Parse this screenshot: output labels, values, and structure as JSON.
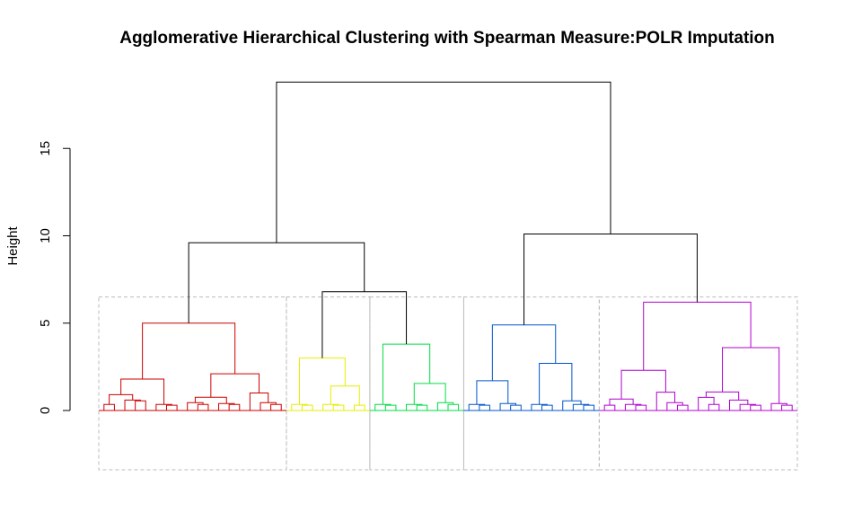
{
  "chart_data": {
    "type": "dendrogram",
    "title": "Agglomerative Hierarchical Clustering with Spearman Measure:POLR Imputation",
    "ylabel": "Height",
    "xlabel": "",
    "ylim": [
      0,
      18.8
    ],
    "yticks": [
      "0",
      "5",
      "10",
      "15"
    ],
    "cut_height": 6.5,
    "root_height": 18.8,
    "top_merges": [
      {
        "name": "left",
        "height": 9.6,
        "children": [
          "red",
          "yellow+green"
        ]
      },
      {
        "name": "yellow+green",
        "height": 6.8,
        "children": [
          "yellow",
          "green"
        ]
      },
      {
        "name": "right",
        "height": 10.1,
        "children": [
          "blue",
          "purple"
        ]
      }
    ],
    "clusters": [
      {
        "color": "#cc0000",
        "height": 5.0,
        "sub": [
          {
            "height": 1.8,
            "leaves": [
              [
                0.95,
                0.35
              ],
              [
                1.3,
                0.6,
                0.55
              ],
              [
                0.5,
                0.35,
                0.3
              ]
            ]
          },
          {
            "height": 2.1,
            "leaves": [
              [
                0.5,
                0.45,
                0.35
              ],
              [
                1.0,
                0.4,
                0.35
              ],
              [
                1.8,
                1.0,
                0.45,
                0.35
              ]
            ]
          }
        ]
      },
      {
        "color": "#e6ee00",
        "height": 3.0,
        "sub": [
          {
            "height": 1.0,
            "leaves": [
              [
                0.55,
                0.35,
                0.3
              ]
            ]
          },
          {
            "height": 1.4,
            "leaves": [
              [
                0.6,
                0.35,
                0.3
              ],
              [
                0.4,
                0.3
              ]
            ]
          }
        ]
      },
      {
        "color": "#00dd44",
        "height": 3.8,
        "sub": [
          {
            "height": 1.0,
            "leaves": [
              [
                0.55,
                0.35,
                0.3
              ]
            ]
          },
          {
            "height": 1.55,
            "leaves": [
              [
                0.5,
                0.35,
                0.3
              ],
              [
                1.25,
                0.45,
                0.35
              ]
            ]
          }
        ]
      },
      {
        "color": "#0055cc",
        "height": 4.9,
        "sub": [
          {
            "height": 1.7,
            "leaves": [
              [
                0.45,
                0.35,
                0.3
              ],
              [
                0.85,
                0.4,
                0.3
              ]
            ]
          },
          {
            "height": 2.7,
            "leaves": [
              [
                0.75,
                0.35,
                0.3
              ],
              [
                1.0,
                0.55,
                0.35,
                0.3
              ]
            ]
          }
        ]
      },
      {
        "color": "#b000d0",
        "height": 6.2,
        "sub": [
          {
            "height": 2.3,
            "leaves": [
              [
                0.35,
                0.3
              ],
              [
                0.9,
                0.35,
                0.3
              ],
              [
                1.5,
                1.05,
                0.45,
                0.3
              ]
            ]
          },
          {
            "height": 3.6,
            "leaves": [
              [
                1.0,
                0.75,
                0.35
              ],
              [
                1.8,
                0.6,
                0.35,
                0.3
              ],
              [
                1.25,
                0.4,
                0.3
              ]
            ]
          }
        ]
      }
    ],
    "border_color": "#bbbbbb",
    "top_color": "#000000"
  }
}
